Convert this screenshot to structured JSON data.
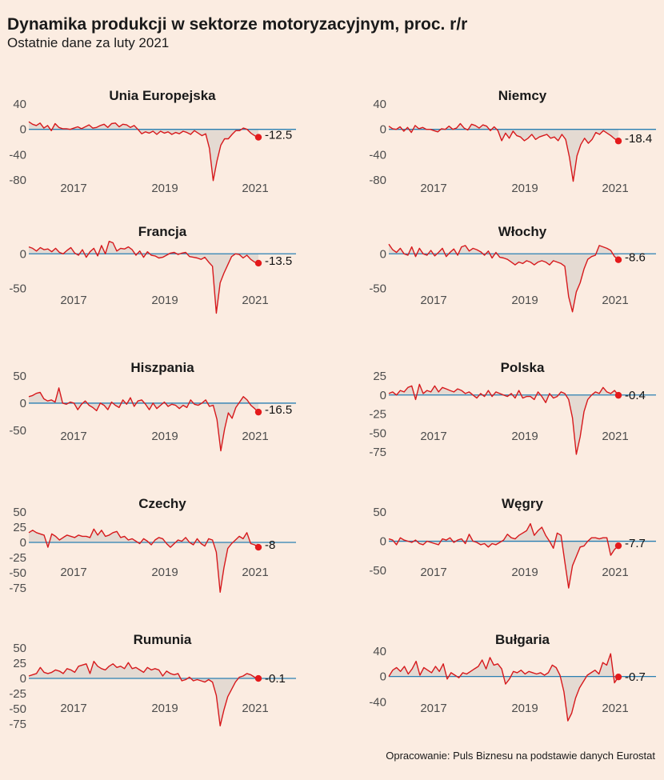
{
  "title": "Dynamika produkcji w sektorze motoryzacyjnym, proc. r/r",
  "subtitle": "Ostatnie dane za luty 2021",
  "source": "Opracowanie: Puls Biznesu na podstawie danych Eurostat",
  "colors": {
    "background": "#fbece1",
    "line": "#d7191c",
    "area": "#e3d9d1",
    "zero_line": "#2a7fb2",
    "end_point": "#e41a1c"
  },
  "chart_data": [
    {
      "type": "area",
      "title": "Unia Europejska",
      "ylim": [
        -80,
        40
      ],
      "yticks": [
        40,
        0,
        -40,
        -80
      ],
      "xticks": [
        "2017",
        "2019",
        "2021"
      ],
      "last_label": "-12.5",
      "x_range": [
        "2016-01",
        "2021-02"
      ],
      "values": [
        12,
        8,
        6,
        10,
        2,
        6,
        -2,
        9,
        3,
        1,
        1,
        0,
        2,
        4,
        1,
        4,
        7,
        2,
        3,
        6,
        8,
        3,
        9,
        10,
        4,
        8,
        7,
        3,
        6,
        0,
        -7,
        -4,
        -6,
        -3,
        -8,
        -3,
        -6,
        -4,
        -8,
        -5,
        -7,
        -3,
        -5,
        -8,
        -2,
        -6,
        -10,
        -7,
        -30,
        -81,
        -50,
        -25,
        -15,
        -15,
        -8,
        -2,
        -2,
        2,
        0,
        -6,
        -10,
        -12.5
      ]
    },
    {
      "type": "area",
      "title": "Niemcy",
      "ylim": [
        -80,
        40
      ],
      "yticks": [
        40,
        0,
        -40,
        -80
      ],
      "xticks": [
        "2017",
        "2019",
        "2021"
      ],
      "last_label": "-18.4",
      "x_range": [
        "2016-01",
        "2021-02"
      ],
      "values": [
        5,
        1,
        0,
        4,
        -3,
        3,
        -5,
        6,
        1,
        3,
        0,
        0,
        -2,
        -4,
        1,
        0,
        5,
        0,
        2,
        9,
        2,
        -1,
        8,
        6,
        2,
        7,
        5,
        -2,
        4,
        -2,
        -18,
        -6,
        -14,
        -3,
        -10,
        -12,
        -18,
        -14,
        -8,
        -16,
        -12,
        -10,
        -8,
        -14,
        -12,
        -18,
        -8,
        -16,
        -44,
        -82,
        -42,
        -24,
        -14,
        -22,
        -16,
        -5,
        -8,
        -2,
        -6,
        -10,
        -15,
        -18.4
      ]
    },
    {
      "type": "area",
      "title": "Francja",
      "ylim": [
        -90,
        20
      ],
      "yticks": [
        0,
        -50
      ],
      "xticks": [
        "2017",
        "2019",
        "2021"
      ],
      "last_label": "-13.5",
      "x_range": [
        "2016-01",
        "2021-02"
      ],
      "values": [
        10,
        8,
        4,
        9,
        6,
        7,
        3,
        8,
        2,
        0,
        5,
        9,
        1,
        -2,
        6,
        -5,
        3,
        8,
        -3,
        12,
        0,
        18,
        16,
        4,
        8,
        7,
        10,
        6,
        -2,
        4,
        -5,
        3,
        -2,
        -3,
        -6,
        -5,
        -2,
        1,
        2,
        -1,
        1,
        2,
        -4,
        -5,
        -6,
        -8,
        -5,
        -12,
        -18,
        -86,
        -42,
        -28,
        -16,
        -4,
        0,
        -1,
        -6,
        -2,
        -8,
        -12,
        -13.5
      ]
    },
    {
      "type": "area",
      "title": "Włochy",
      "ylim": [
        -90,
        20
      ],
      "yticks": [
        0,
        -50
      ],
      "xticks": [
        "2017",
        "2019",
        "2021"
      ],
      "last_label": "-8.6",
      "x_range": [
        "2016-01",
        "2021-02"
      ],
      "values": [
        14,
        6,
        2,
        8,
        0,
        -2,
        10,
        -4,
        8,
        0,
        -2,
        5,
        -3,
        2,
        8,
        -4,
        2,
        7,
        -2,
        10,
        12,
        4,
        8,
        6,
        3,
        -2,
        4,
        -6,
        2,
        -5,
        -6,
        -8,
        -12,
        -16,
        -12,
        -14,
        -10,
        -12,
        -16,
        -12,
        -10,
        -12,
        -16,
        -10,
        -12,
        -14,
        -18,
        -62,
        -84,
        -55,
        -42,
        -22,
        -8,
        -4,
        -2,
        12,
        10,
        8,
        5,
        -4,
        -8.6
      ]
    },
    {
      "type": "area",
      "title": "Hiszpania",
      "ylim": [
        -90,
        50
      ],
      "yticks": [
        50,
        0,
        -50
      ],
      "xticks": [
        "2017",
        "2019",
        "2021"
      ],
      "last_label": "-16.5",
      "x_range": [
        "2016-01",
        "2021-02"
      ],
      "values": [
        12,
        14,
        18,
        20,
        8,
        4,
        6,
        2,
        28,
        0,
        -2,
        2,
        0,
        -12,
        -2,
        4,
        -4,
        -8,
        -14,
        0,
        -4,
        -12,
        2,
        -4,
        -8,
        6,
        -2,
        10,
        -6,
        4,
        6,
        -2,
        -12,
        0,
        -10,
        -4,
        2,
        -6,
        -2,
        -4,
        -10,
        -4,
        -8,
        6,
        -2,
        -4,
        0,
        6,
        -6,
        -4,
        -30,
        -88,
        -48,
        -18,
        -28,
        -8,
        2,
        12,
        6,
        -4,
        -10,
        -16.5
      ]
    },
    {
      "type": "area",
      "title": "Polska",
      "ylim": [
        -75,
        25
      ],
      "yticks": [
        25,
        0,
        -25,
        -50,
        -75
      ],
      "xticks": [
        "2017",
        "2019",
        "2021"
      ],
      "last_label": "-0.4",
      "x_range": [
        "2016-01",
        "2021-02"
      ],
      "values": [
        2,
        4,
        0,
        6,
        4,
        10,
        12,
        -6,
        14,
        2,
        6,
        4,
        12,
        4,
        10,
        8,
        6,
        4,
        8,
        6,
        2,
        4,
        0,
        -4,
        2,
        -2,
        6,
        -2,
        4,
        2,
        0,
        -2,
        2,
        -4,
        6,
        -4,
        -2,
        -2,
        -6,
        4,
        -2,
        -10,
        2,
        -4,
        -2,
        4,
        2,
        -6,
        -30,
        -78,
        -55,
        -22,
        -6,
        0,
        4,
        2,
        10,
        4,
        2,
        6,
        -0.4
      ]
    },
    {
      "type": "area",
      "title": "Czechy",
      "ylim": [
        -75,
        50
      ],
      "yticks": [
        50,
        25,
        0,
        -25,
        -50,
        -75
      ],
      "xticks": [
        "2017",
        "2019",
        "2021"
      ],
      "last_label": "-8",
      "x_range": [
        "2016-01",
        "2021-02"
      ],
      "values": [
        16,
        20,
        16,
        14,
        12,
        -8,
        14,
        10,
        4,
        8,
        12,
        10,
        8,
        12,
        10,
        10,
        8,
        22,
        12,
        20,
        10,
        12,
        16,
        18,
        8,
        10,
        4,
        6,
        2,
        -2,
        6,
        2,
        -4,
        4,
        8,
        6,
        -2,
        -8,
        -2,
        4,
        2,
        8,
        0,
        -4,
        6,
        -2,
        -6,
        6,
        4,
        -16,
        -82,
        -42,
        -10,
        -2,
        4,
        10,
        6,
        16,
        -2,
        -4,
        -8
      ]
    },
    {
      "type": "area",
      "title": "Węgry",
      "ylim": [
        -80,
        50
      ],
      "yticks": [
        50,
        0,
        -50
      ],
      "xticks": [
        "2017",
        "2019",
        "2021"
      ],
      "last_label": "-7.7",
      "x_range": [
        "2016-01",
        "2021-02"
      ],
      "values": [
        4,
        2,
        -6,
        6,
        2,
        0,
        -2,
        2,
        -4,
        -6,
        0,
        -2,
        -4,
        -6,
        4,
        2,
        6,
        -2,
        2,
        4,
        -4,
        12,
        0,
        -2,
        -6,
        -4,
        -10,
        -4,
        -6,
        -2,
        2,
        12,
        6,
        4,
        10,
        14,
        18,
        30,
        10,
        18,
        24,
        10,
        0,
        -12,
        14,
        10,
        -35,
        -80,
        -42,
        -26,
        -10,
        -8,
        0,
        6,
        6,
        4,
        6,
        6,
        -24,
        -14,
        -7.7
      ]
    },
    {
      "type": "area",
      "title": "Rumunia",
      "ylim": [
        -75,
        50
      ],
      "yticks": [
        50,
        25,
        0,
        -25,
        -50,
        -75
      ],
      "xticks": [
        "2017",
        "2019",
        "2021"
      ],
      "last_label": "-0.1",
      "x_range": [
        "2016-01",
        "2021-02"
      ],
      "values": [
        4,
        6,
        8,
        18,
        10,
        8,
        10,
        14,
        12,
        8,
        16,
        14,
        10,
        20,
        22,
        24,
        8,
        28,
        20,
        16,
        14,
        20,
        24,
        18,
        20,
        16,
        26,
        16,
        18,
        14,
        10,
        18,
        14,
        16,
        14,
        4,
        12,
        8,
        6,
        8,
        -4,
        -2,
        2,
        -4,
        -2,
        -4,
        -6,
        -2,
        -6,
        -28,
        -78,
        -52,
        -30,
        -18,
        -6,
        2,
        4,
        8,
        6,
        2,
        -0.1
      ]
    },
    {
      "type": "area",
      "title": "Bułgaria",
      "ylim": [
        -75,
        45
      ],
      "yticks": [
        40,
        0,
        -40
      ],
      "xticks": [
        "2017",
        "2019",
        "2021"
      ],
      "last_label": "-0.7",
      "x_range": [
        "2016-01",
        "2021-02"
      ],
      "values": [
        0,
        10,
        14,
        8,
        16,
        4,
        12,
        24,
        2,
        14,
        10,
        6,
        16,
        8,
        20,
        -4,
        6,
        2,
        -2,
        6,
        4,
        8,
        12,
        16,
        26,
        12,
        30,
        18,
        20,
        12,
        -12,
        -4,
        8,
        6,
        10,
        4,
        8,
        6,
        4,
        6,
        2,
        6,
        18,
        14,
        2,
        -24,
        -70,
        -58,
        -34,
        -18,
        -8,
        2,
        6,
        10,
        4,
        22,
        18,
        36,
        -10,
        -0.7
      ]
    }
  ]
}
